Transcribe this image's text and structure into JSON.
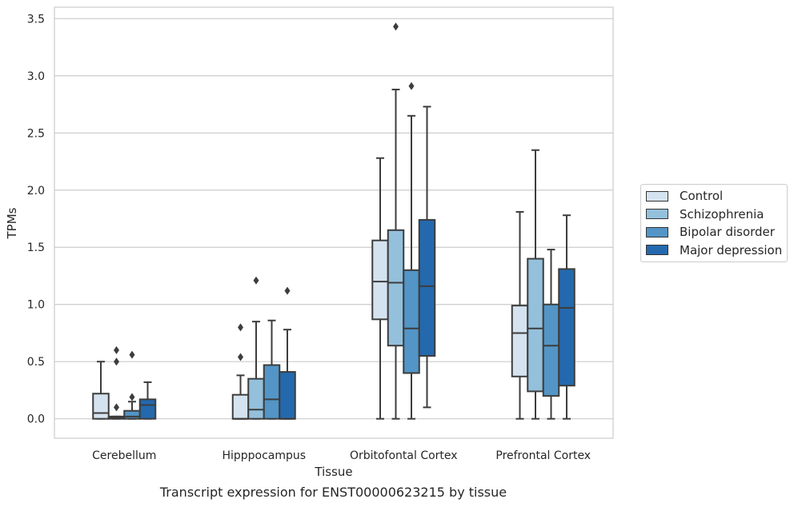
{
  "caption": "Transcript expression for ENST00000623215 by tissue",
  "colors": {
    "Control": "#d5e3f0",
    "Schizophrenia": "#94c0dc",
    "Bipolar disorder": "#5295c6",
    "Major depression": "#2469ae"
  },
  "chart_data": {
    "type": "box",
    "xlabel": "Tissue",
    "ylabel": "TPMs",
    "ylim": [
      -0.17,
      3.6
    ],
    "yticks": [
      "0.0",
      "0.5",
      "1.0",
      "1.5",
      "2.0",
      "2.5",
      "3.0",
      "3.5"
    ],
    "grid": "horizontal",
    "legend_position": "right",
    "categories": [
      "Cerebellum",
      "Hipppocampus",
      "Orbitofontal Cortex",
      "Prefrontal Cortex"
    ],
    "series": [
      {
        "name": "Control",
        "boxes": [
          {
            "q1": 0.0,
            "median": 0.05,
            "q3": 0.22,
            "whisker_low": 0.0,
            "whisker_high": 0.5,
            "outliers": []
          },
          {
            "q1": 0.0,
            "median": 0.0,
            "q3": 0.21,
            "whisker_low": 0.0,
            "whisker_high": 0.38,
            "outliers": [
              0.54,
              0.8
            ]
          },
          {
            "q1": 0.87,
            "median": 1.2,
            "q3": 1.56,
            "whisker_low": 0.0,
            "whisker_high": 2.28,
            "outliers": []
          },
          {
            "q1": 0.37,
            "median": 0.75,
            "q3": 0.99,
            "whisker_low": 0.0,
            "whisker_high": 1.81,
            "outliers": []
          }
        ]
      },
      {
        "name": "Schizophrenia",
        "boxes": [
          {
            "q1": 0.0,
            "median": 0.01,
            "q3": 0.02,
            "whisker_low": 0.0,
            "whisker_high": 0.02,
            "outliers": [
              0.1,
              0.5,
              0.6
            ]
          },
          {
            "q1": 0.0,
            "median": 0.08,
            "q3": 0.35,
            "whisker_low": 0.0,
            "whisker_high": 0.85,
            "outliers": [
              1.21
            ]
          },
          {
            "q1": 0.64,
            "median": 1.19,
            "q3": 1.65,
            "whisker_low": 0.0,
            "whisker_high": 2.88,
            "outliers": [
              3.43
            ]
          },
          {
            "q1": 0.24,
            "median": 0.79,
            "q3": 1.4,
            "whisker_low": 0.0,
            "whisker_high": 2.35,
            "outliers": []
          }
        ]
      },
      {
        "name": "Bipolar disorder",
        "boxes": [
          {
            "q1": 0.0,
            "median": 0.02,
            "q3": 0.07,
            "whisker_low": 0.0,
            "whisker_high": 0.15,
            "outliers": [
              0.19,
              0.56
            ]
          },
          {
            "q1": 0.0,
            "median": 0.17,
            "q3": 0.47,
            "whisker_low": 0.0,
            "whisker_high": 0.86,
            "outliers": []
          },
          {
            "q1": 0.4,
            "median": 0.79,
            "q3": 1.3,
            "whisker_low": 0.0,
            "whisker_high": 2.65,
            "outliers": [
              2.91
            ]
          },
          {
            "q1": 0.2,
            "median": 0.64,
            "q3": 1.0,
            "whisker_low": 0.0,
            "whisker_high": 1.48,
            "outliers": []
          }
        ]
      },
      {
        "name": "Major depression",
        "boxes": [
          {
            "q1": 0.0,
            "median": 0.12,
            "q3": 0.17,
            "whisker_low": 0.0,
            "whisker_high": 0.32,
            "outliers": []
          },
          {
            "q1": 0.0,
            "median": 0.0,
            "q3": 0.41,
            "whisker_low": 0.0,
            "whisker_high": 0.78,
            "outliers": [
              1.12
            ]
          },
          {
            "q1": 0.55,
            "median": 1.16,
            "q3": 1.74,
            "whisker_low": 0.1,
            "whisker_high": 2.73,
            "outliers": []
          },
          {
            "q1": 0.29,
            "median": 0.97,
            "q3": 1.31,
            "whisker_low": 0.0,
            "whisker_high": 1.78,
            "outliers": []
          }
        ]
      }
    ]
  }
}
